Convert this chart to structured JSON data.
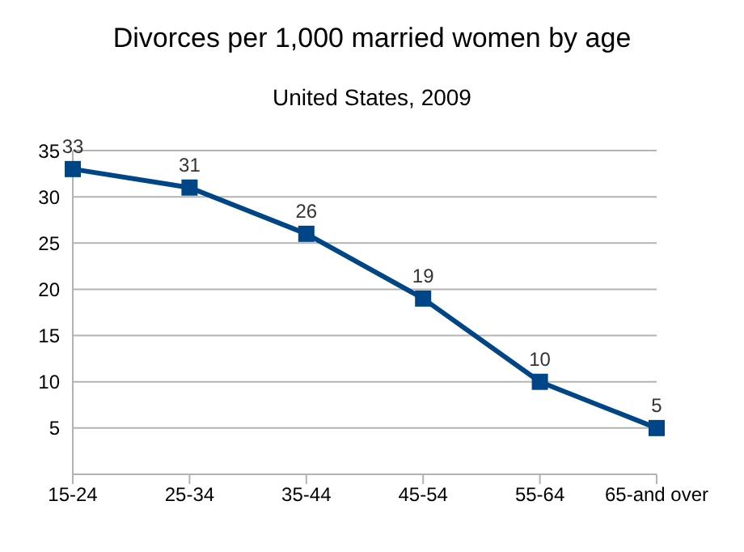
{
  "chart_data": {
    "type": "line",
    "title": "Divorces per 1,000 married women by age",
    "subtitle": "United States, 2009",
    "categories": [
      "15-24",
      "25-34",
      "35-44",
      "45-54",
      "55-64",
      "65-and over"
    ],
    "series": [
      {
        "color": "#004586",
        "values": [
          33,
          31,
          26,
          19,
          10,
          5
        ]
      }
    ],
    "ylim": [
      0,
      35
    ],
    "yticks": [
      {
        "value": 0,
        "label": null
      },
      5,
      10,
      15,
      20,
      25,
      30,
      35
    ],
    "grid": "y",
    "marker": "square",
    "line_style": "solid",
    "data_labels": true,
    "legend": false
  }
}
